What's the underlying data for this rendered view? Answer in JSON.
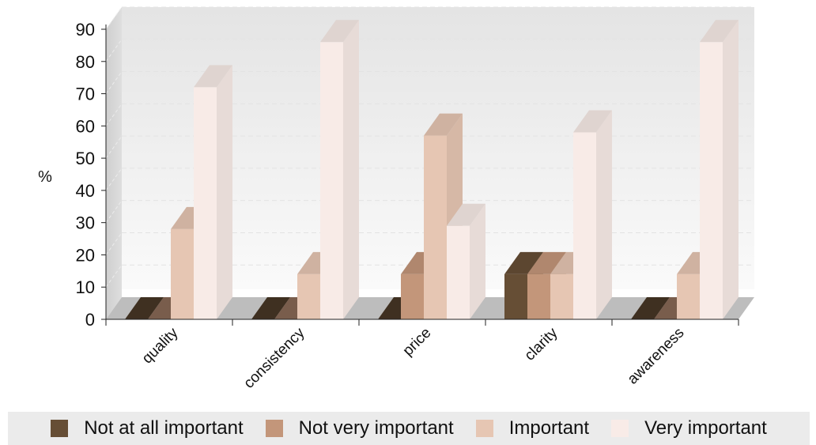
{
  "chart_data": {
    "type": "bar",
    "three_d": true,
    "title": "",
    "xlabel": "",
    "ylabel": "%",
    "ylim": [
      0,
      90
    ],
    "y_ticks": [
      0,
      10,
      20,
      30,
      40,
      50,
      60,
      70,
      80,
      90
    ],
    "grid": true,
    "legend_position": "bottom",
    "categories": [
      "quality",
      "consistency",
      "price",
      "clarity",
      "awareness"
    ],
    "series": [
      {
        "name": "Not at all important",
        "color": "#664e35",
        "values": [
          0,
          0,
          0,
          14,
          0
        ]
      },
      {
        "name": "Not very important",
        "color": "#c3967a",
        "values": [
          0,
          0,
          14,
          14,
          0
        ]
      },
      {
        "name": "Important",
        "color": "#e6c6b3",
        "values": [
          28,
          14,
          57,
          14,
          14
        ]
      },
      {
        "name": "Very important",
        "color": "#f8ebe7",
        "values": [
          72,
          86,
          29,
          58,
          86
        ]
      }
    ]
  }
}
